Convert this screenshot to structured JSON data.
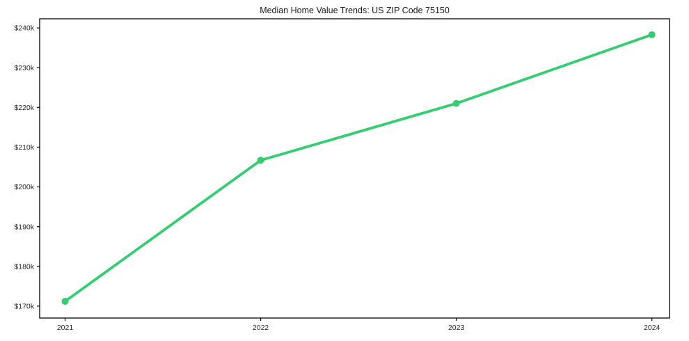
{
  "chart_data": {
    "type": "line",
    "title": "Median Home Value Trends: US ZIP Code 75150",
    "x": [
      2021,
      2022,
      2023,
      2024
    ],
    "x_tick_labels": [
      "2021",
      "2022",
      "2023",
      "2024"
    ],
    "values": [
      171200,
      206700,
      221000,
      238300
    ],
    "y_ticks": [
      {
        "value": 170000,
        "label": "$170k"
      },
      {
        "value": 180000,
        "label": "$180k"
      },
      {
        "value": 190000,
        "label": "$190k"
      },
      {
        "value": 200000,
        "label": "$200k"
      },
      {
        "value": 210000,
        "label": "$210k"
      },
      {
        "value": 220000,
        "label": "$220k"
      },
      {
        "value": 230000,
        "label": "$230k"
      },
      {
        "value": 240000,
        "label": "$240k"
      }
    ],
    "ylim": [
      167000,
      242300
    ],
    "xlim": [
      2020.87,
      2024.09
    ],
    "grid": false,
    "legend": "none",
    "marker": "circle"
  },
  "colors": {
    "line": "#35cd72",
    "marker": "#35cd72",
    "title_text": "#1a1a1a",
    "tick_text": "#262626",
    "spine": "#000000",
    "background": "#ffffff"
  }
}
